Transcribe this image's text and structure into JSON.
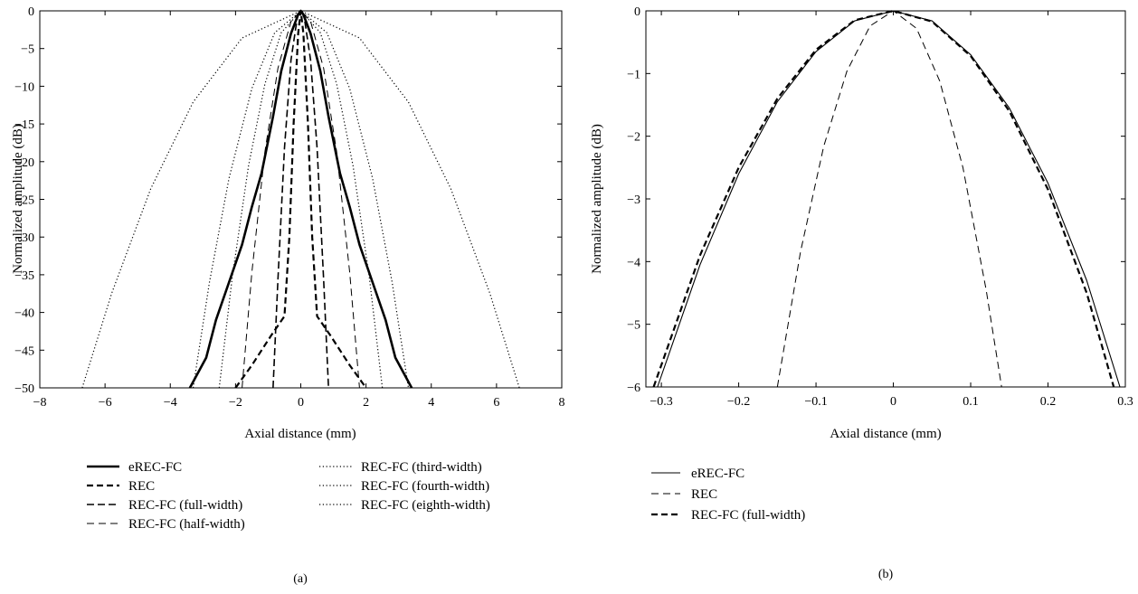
{
  "chart_data": [
    {
      "type": "line",
      "panel": "(a)",
      "xlabel": "Axial distance (mm)",
      "ylabel": "Normalized amplitude (dB)",
      "xlim": [
        -8,
        8
      ],
      "ylim": [
        -50,
        0
      ],
      "xticks": [
        -8,
        -6,
        -4,
        -2,
        0,
        2,
        4,
        6,
        8
      ],
      "yticks": [
        0,
        -5,
        -10,
        -15,
        -20,
        -25,
        -30,
        -35,
        -40,
        -45,
        -50
      ],
      "xtick_labels": [
        "−8",
        "−6",
        "−4",
        "−2",
        "0",
        "2",
        "4",
        "6",
        "8"
      ],
      "ytick_labels": [
        "0",
        "−5",
        "−10",
        "−15",
        "−20",
        "−25",
        "−30",
        "−35",
        "−40",
        "−45",
        "−50"
      ],
      "grid": false,
      "legend_position": "below",
      "series": [
        {
          "name": "eREC-FC",
          "style": "solid-thick",
          "x": [
            -3.4,
            -2.9,
            -2.6,
            -2.2,
            -1.8,
            -1.5,
            -1.2,
            -0.85,
            -0.6,
            -0.3,
            -0.08,
            0,
            0.08,
            0.3,
            0.6,
            0.85,
            1.2,
            1.5,
            1.8,
            2.2,
            2.6,
            2.9,
            3.4
          ],
          "y": [
            -50,
            -46,
            -41,
            -36,
            -31,
            -26,
            -21.5,
            -14,
            -8,
            -3,
            -0.5,
            0,
            -0.5,
            -3,
            -8,
            -14,
            -21.5,
            -26,
            -31,
            -36,
            -41,
            -46,
            -50
          ]
        },
        {
          "name": "REC",
          "style": "dashed-thick",
          "x": [
            -2.0,
            -1.5,
            -0.9,
            -0.5,
            -0.35,
            -0.22,
            -0.08,
            0,
            0.08,
            0.22,
            0.35,
            0.5,
            0.9,
            1.5,
            2.0
          ],
          "y": [
            -50,
            -47,
            -43,
            -40.5,
            -30,
            -15,
            -3,
            0,
            -3,
            -15,
            -30,
            -40.5,
            -43,
            -47,
            -50
          ]
        },
        {
          "name": "REC-FC (full-width)",
          "style": "dashed",
          "x": [
            -0.85,
            -0.7,
            -0.5,
            -0.3,
            -0.1,
            0,
            0.1,
            0.3,
            0.5,
            0.7,
            0.85
          ],
          "y": [
            -50,
            -35.6,
            -18.2,
            -6.5,
            -0.7,
            0,
            -0.7,
            -6.5,
            -18.2,
            -35.6,
            -50
          ]
        },
        {
          "name": "REC-FC (half-width)",
          "style": "dashed-thin",
          "x": [
            -1.8,
            -1.5,
            -1.1,
            -0.7,
            -0.3,
            0,
            0.3,
            0.7,
            1.1,
            1.5,
            1.8
          ],
          "y": [
            -50,
            -34.7,
            -18.7,
            -7.6,
            -1.4,
            0,
            -1.4,
            -7.6,
            -18.7,
            -34.7,
            -50
          ]
        },
        {
          "name": "REC-FC (third-width)",
          "style": "dotted",
          "x": [
            -2.5,
            -2.1,
            -1.6,
            -1.1,
            -0.6,
            0,
            0.6,
            1.1,
            1.6,
            2.1,
            2.5
          ],
          "y": [
            -50,
            -35.3,
            -20.5,
            -9.7,
            -2.9,
            0,
            -2.9,
            -9.7,
            -20.5,
            -35.3,
            -50
          ]
        },
        {
          "name": "REC-FC (fourth-width)",
          "style": "dotted",
          "x": [
            -3.3,
            -2.8,
            -2.2,
            -1.5,
            -0.8,
            0,
            0.8,
            1.5,
            2.2,
            2.8,
            3.3
          ],
          "y": [
            -50,
            -36,
            -22.2,
            -10.3,
            -2.9,
            0,
            -2.9,
            -10.3,
            -22.2,
            -36,
            -50
          ]
        },
        {
          "name": "REC-FC (eighth-width)",
          "style": "dotted",
          "x": [
            -6.7,
            -5.8,
            -4.6,
            -3.3,
            -1.8,
            0,
            1.8,
            3.3,
            4.6,
            5.8,
            6.7
          ],
          "y": [
            -50,
            -37.5,
            -23.6,
            -12.1,
            -3.6,
            0,
            -3.6,
            -12.1,
            -23.6,
            -37.5,
            -50
          ]
        }
      ]
    },
    {
      "type": "line",
      "panel": "(b)",
      "xlabel": "Axial distance (mm)",
      "ylabel": "Normalized amplitude (dB)",
      "xlim": [
        -0.32,
        0.3
      ],
      "ylim": [
        -6,
        0
      ],
      "xticks": [
        -0.3,
        -0.2,
        -0.1,
        0,
        0.1,
        0.2,
        0.3
      ],
      "yticks": [
        0,
        -1,
        -2,
        -3,
        -4,
        -5,
        -6
      ],
      "xtick_labels": [
        "−0.3",
        "−0.2",
        "−0.1",
        "0",
        "0.1",
        "0.2",
        "0.3"
      ],
      "ytick_labels": [
        "0",
        "−1",
        "−2",
        "−3",
        "−4",
        "−5",
        "−6"
      ],
      "grid": false,
      "legend_position": "below",
      "series": [
        {
          "name": "eREC-FC",
          "style": "solid-thin",
          "x": [
            -0.305,
            -0.25,
            -0.2,
            -0.15,
            -0.1,
            -0.05,
            0,
            0.05,
            0.1,
            0.15,
            0.2,
            0.25,
            0.293
          ],
          "y": [
            -6,
            -4.05,
            -2.6,
            -1.45,
            -0.65,
            -0.16,
            0,
            -0.16,
            -0.7,
            -1.55,
            -2.75,
            -4.3,
            -6
          ]
        },
        {
          "name": "REC",
          "style": "dashed-thin",
          "x": [
            -0.15,
            -0.12,
            -0.09,
            -0.06,
            -0.03,
            0,
            0.03,
            0.06,
            0.09,
            0.12,
            0.14
          ],
          "y": [
            -6,
            -3.84,
            -2.16,
            -0.96,
            -0.24,
            0,
            -0.28,
            -1.12,
            -2.5,
            -4.45,
            -6
          ]
        },
        {
          "name": "REC-FC (full-width)",
          "style": "dashed-thick",
          "x": [
            -0.31,
            -0.25,
            -0.2,
            -0.15,
            -0.1,
            -0.05,
            0,
            0.05,
            0.1,
            0.15,
            0.2,
            0.25,
            0.285
          ],
          "y": [
            -6,
            -3.9,
            -2.5,
            -1.4,
            -0.62,
            -0.15,
            0,
            -0.17,
            -0.72,
            -1.6,
            -2.85,
            -4.5,
            -6
          ]
        }
      ]
    }
  ]
}
